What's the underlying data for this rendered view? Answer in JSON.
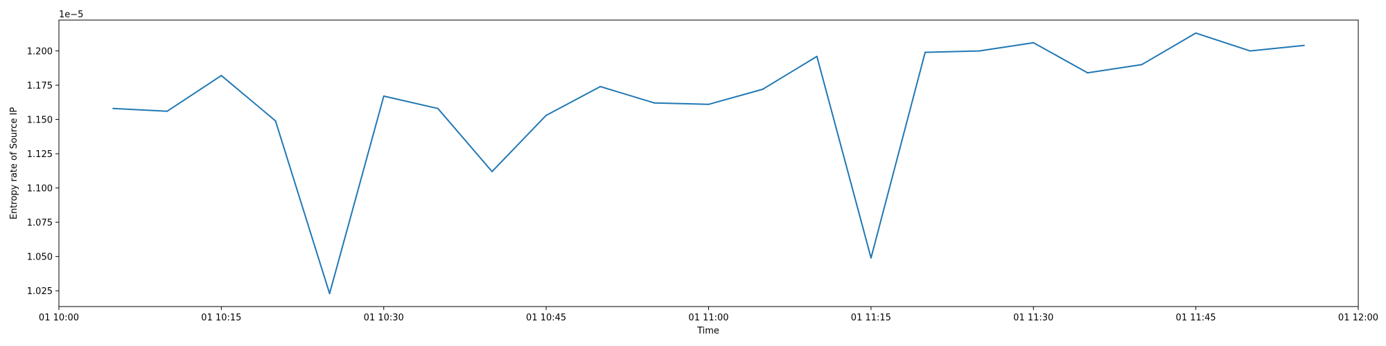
{
  "chart_data": {
    "type": "line",
    "xlabel": "Time",
    "ylabel": "Entropy rate of Source IP",
    "y_offset_label": "1e−5",
    "x_unit": "minutes after 01 10:00",
    "xlim": [
      0,
      120
    ],
    "ylim": [
      1.0135,
      1.2225
    ],
    "x_ticks": [
      {
        "value": 0,
        "label": "01 10:00"
      },
      {
        "value": 15,
        "label": "01 10:15"
      },
      {
        "value": 30,
        "label": "01 10:30"
      },
      {
        "value": 45,
        "label": "01 10:45"
      },
      {
        "value": 60,
        "label": "01 11:00"
      },
      {
        "value": 75,
        "label": "01 11:15"
      },
      {
        "value": 90,
        "label": "01 11:30"
      },
      {
        "value": 105,
        "label": "01 11:45"
      },
      {
        "value": 120,
        "label": "01 12:00"
      }
    ],
    "y_ticks": [
      {
        "value": 1.025,
        "label": "1.025"
      },
      {
        "value": 1.05,
        "label": "1.050"
      },
      {
        "value": 1.075,
        "label": "1.075"
      },
      {
        "value": 1.1,
        "label": "1.100"
      },
      {
        "value": 1.125,
        "label": "1.125"
      },
      {
        "value": 1.15,
        "label": "1.150"
      },
      {
        "value": 1.175,
        "label": "1.175"
      },
      {
        "value": 1.2,
        "label": "1.200"
      }
    ],
    "series": [
      {
        "color": "#1f77b4",
        "x": [
          5,
          10,
          15,
          20,
          25,
          30,
          35,
          40,
          45,
          50,
          55,
          60,
          65,
          70,
          75,
          80,
          85,
          90,
          95,
          100,
          105,
          110,
          115
        ],
        "values": [
          1.158,
          1.156,
          1.182,
          1.149,
          1.023,
          1.167,
          1.158,
          1.112,
          1.153,
          1.174,
          1.162,
          1.161,
          1.172,
          1.196,
          1.049,
          1.199,
          1.2,
          1.206,
          1.184,
          1.19,
          1.213,
          1.2,
          1.204
        ]
      }
    ],
    "grid": false,
    "legend": "none"
  }
}
